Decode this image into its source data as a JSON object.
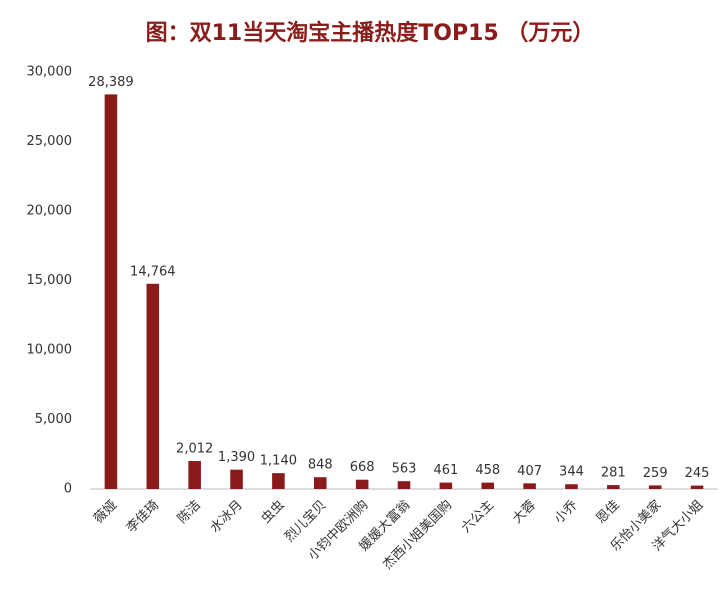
{
  "chart_data": {
    "type": "bar",
    "title": "图：双11当天淘宝主播热度TOP15 （万元）",
    "categories": [
      "薇娅",
      "李佳琦",
      "陈洁",
      "水冰月",
      "虫虫",
      "烈儿宝贝",
      "小钧中欧洲购",
      "媛媛大富翁",
      "杰西小姐美国购",
      "六公主",
      "大蓉",
      "小乔",
      "恩佳",
      "乐怡小美家",
      "洋气大小姐"
    ],
    "values": [
      28389,
      14764,
      2012,
      1390,
      1140,
      848,
      668,
      563,
      461,
      458,
      407,
      344,
      281,
      259,
      245
    ],
    "value_labels": [
      "28,389",
      "14,764",
      "2,012",
      "1,390",
      "1,140",
      "848",
      "668",
      "563",
      "461",
      "458",
      "407",
      "344",
      "281",
      "259",
      "245"
    ],
    "color": "#8b1a1a",
    "ylim": [
      0,
      30000
    ],
    "yticks": [
      0,
      {
        "value": 5000,
        "label": "5,000"
      },
      {
        "value": 10000,
        "label": "10,000"
      },
      {
        "value": 15000,
        "label": "15,000"
      },
      {
        "value": 20000,
        "label": "20,000"
      },
      {
        "value": 25000,
        "label": "25,000"
      },
      {
        "value": 30000,
        "label": "30,000"
      }
    ],
    "grid": false
  }
}
